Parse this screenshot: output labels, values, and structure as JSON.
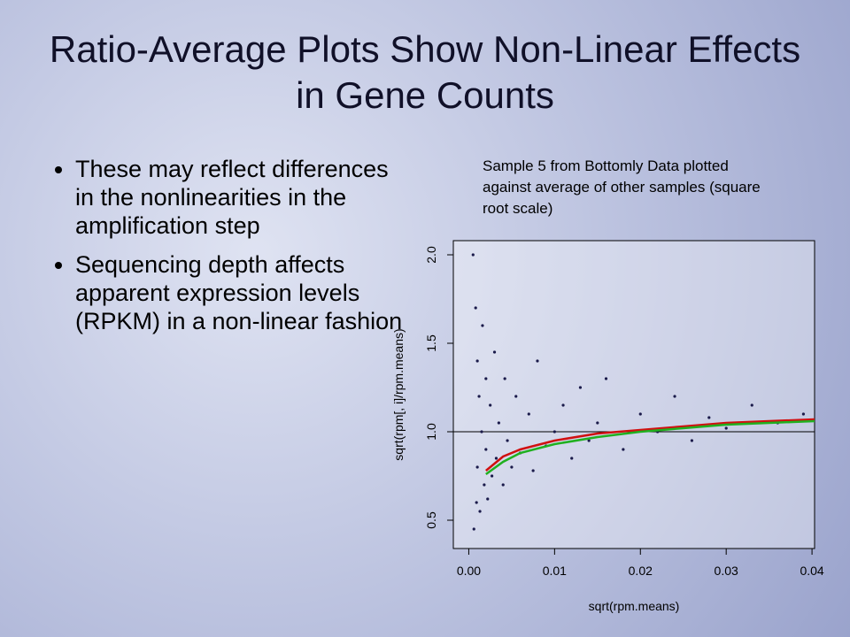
{
  "title": "Ratio-Average Plots Show Non-Linear Effects in Gene Counts",
  "bullets": [
    "These may reflect differences in the nonlinearities in the amplification step",
    "Sequencing depth affects apparent expression levels (RPKM) in a non-linear fashion"
  ],
  "caption": "Sample 5 from Bottomly Data plotted against average of other samples (square root scale)",
  "chart_data": {
    "type": "scatter",
    "xlabel": "sqrt(rpm.means)",
    "ylabel": "sqrt(rpm[, i]/rpm.means)",
    "xlim": [
      -0.0018,
      0.0403
    ],
    "ylim": [
      0.34,
      2.08
    ],
    "xticks": [
      {
        "value": 0,
        "label": "0.00"
      },
      {
        "value": 0.01,
        "label": "0.01"
      },
      {
        "value": 0.02,
        "label": "0.02"
      },
      {
        "value": 0.03,
        "label": "0.03"
      },
      {
        "value": 0.04,
        "label": "0.04"
      }
    ],
    "yticks": [
      {
        "value": 0.5,
        "label": "0.5"
      },
      {
        "value": 1,
        "label": "1.0"
      },
      {
        "value": 1.5,
        "label": "1.5"
      },
      {
        "value": 2,
        "label": "2.0"
      }
    ],
    "hline": 1,
    "points": {
      "color": "#1a1a4a",
      "x": [
        0.0005,
        0.0006,
        0.0008,
        0.0009,
        0.001,
        0.001,
        0.0012,
        0.0013,
        0.0015,
        0.0016,
        0.0018,
        0.002,
        0.002,
        0.0022,
        0.0025,
        0.0027,
        0.003,
        0.0032,
        0.0035,
        0.004,
        0.0042,
        0.0045,
        0.005,
        0.0055,
        0.006,
        0.007,
        0.0075,
        0.008,
        0.009,
        0.01,
        0.011,
        0.012,
        0.013,
        0.014,
        0.015,
        0.016,
        0.018,
        0.02,
        0.022,
        0.024,
        0.026,
        0.028,
        0.03,
        0.033,
        0.036,
        0.039
      ],
      "y": [
        2.0,
        0.45,
        1.7,
        0.6,
        1.4,
        0.8,
        1.2,
        0.55,
        1.0,
        1.6,
        0.7,
        1.3,
        0.9,
        0.62,
        1.15,
        0.75,
        1.45,
        0.85,
        1.05,
        0.7,
        1.3,
        0.95,
        0.8,
        1.2,
        0.88,
        1.1,
        0.78,
        1.4,
        0.92,
        1.0,
        1.15,
        0.85,
        1.25,
        0.95,
        1.05,
        1.3,
        0.9,
        1.1,
        1.0,
        1.2,
        0.95,
        1.08,
        1.02,
        1.15,
        1.05,
        1.1
      ]
    },
    "series": [
      {
        "name": "red",
        "color": "#d01010",
        "x": [
          0.002,
          0.004,
          0.006,
          0.01,
          0.015,
          0.02,
          0.025,
          0.03,
          0.035,
          0.0403
        ],
        "values": [
          0.78,
          0.86,
          0.9,
          0.95,
          0.99,
          1.01,
          1.03,
          1.05,
          1.06,
          1.07
        ]
      },
      {
        "name": "green",
        "color": "#20b020",
        "x": [
          0.002,
          0.004,
          0.006,
          0.01,
          0.015,
          0.02,
          0.025,
          0.03,
          0.035,
          0.0403
        ],
        "values": [
          0.76,
          0.83,
          0.88,
          0.93,
          0.97,
          1.0,
          1.02,
          1.04,
          1.05,
          1.06
        ]
      }
    ]
  }
}
